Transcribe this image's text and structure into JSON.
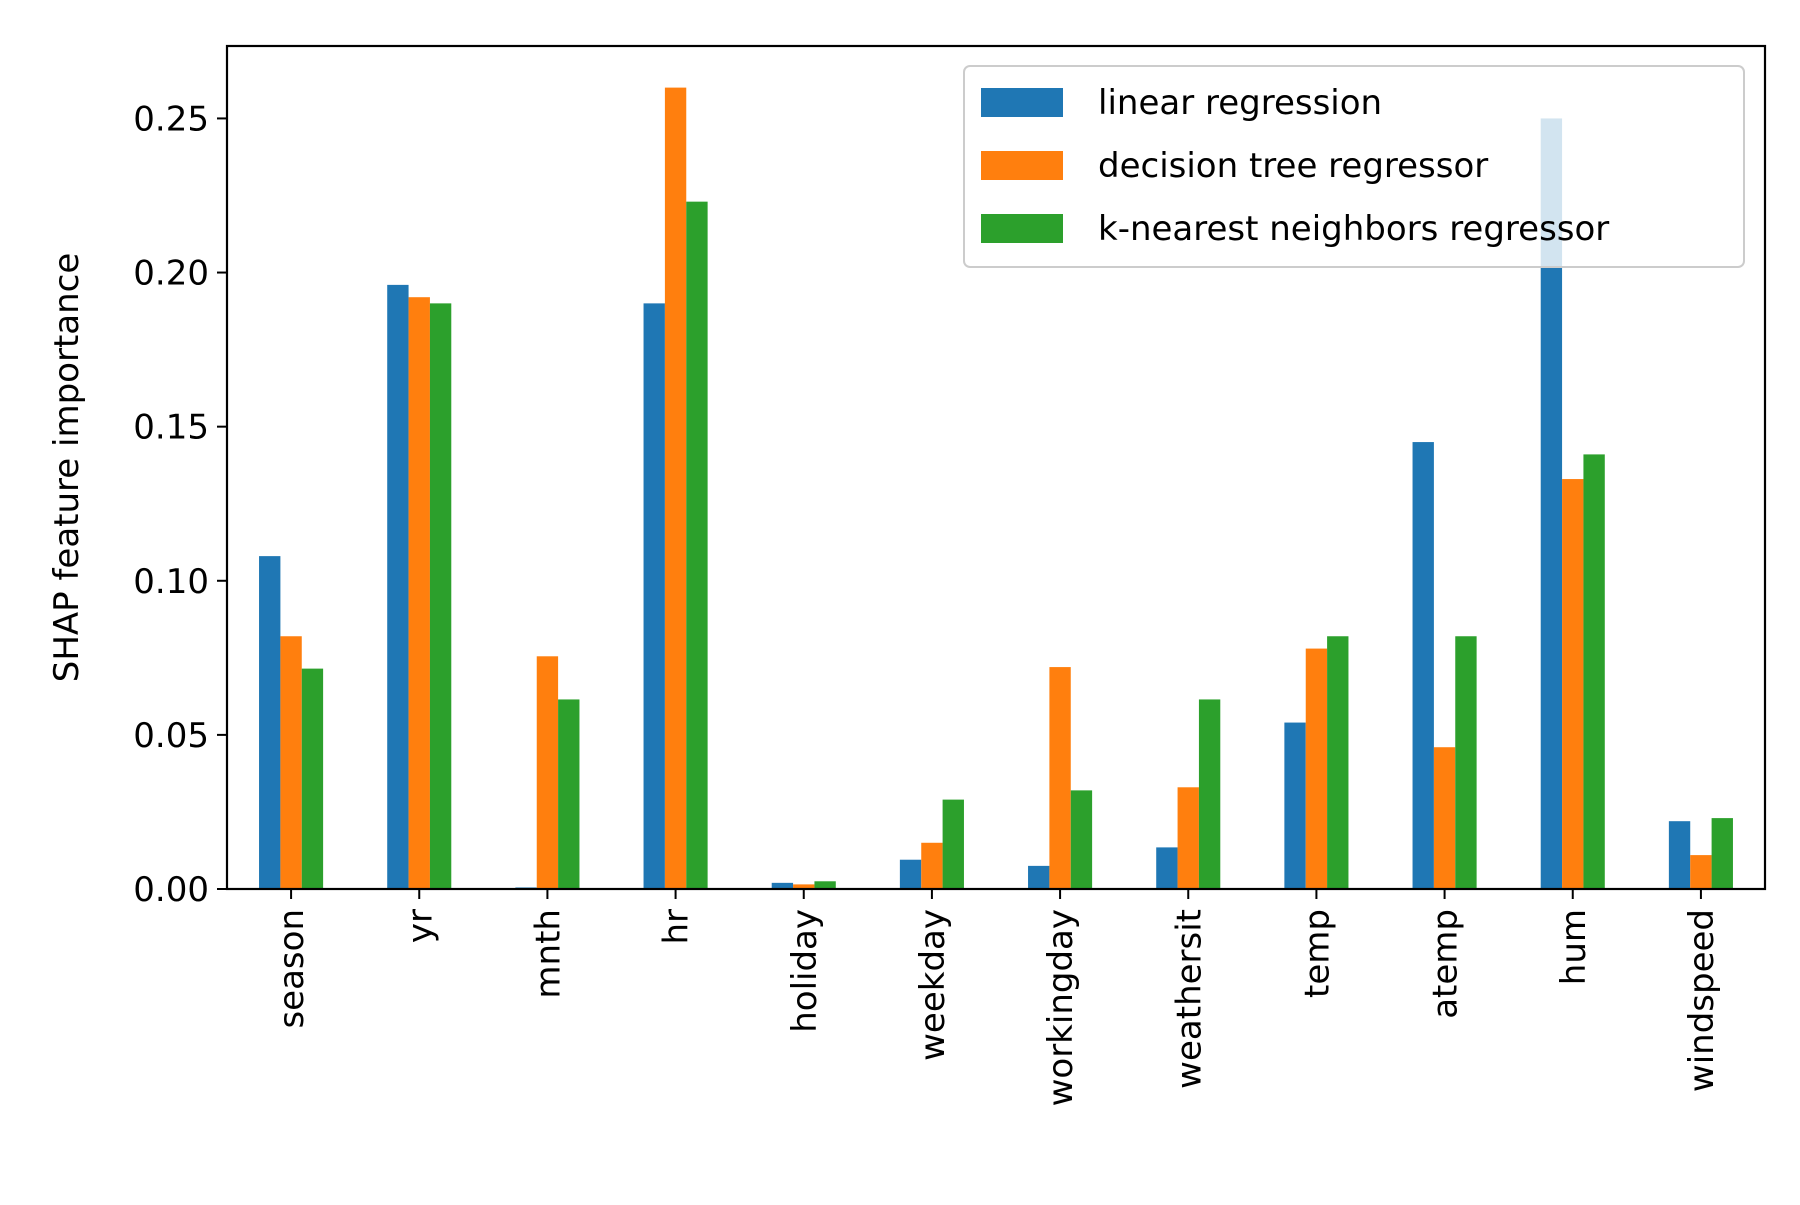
{
  "chart_data": {
    "type": "bar",
    "title": "",
    "xlabel": "",
    "ylabel": "SHAP feature importance",
    "ylim": [
      0,
      0.2735
    ],
    "yticks": [
      0.0,
      0.05,
      0.1,
      0.15,
      0.2,
      0.25
    ],
    "ytick_labels": [
      "0.00",
      "0.05",
      "0.10",
      "0.15",
      "0.20",
      "0.25"
    ],
    "categories": [
      "season",
      "yr",
      "mnth",
      "hr",
      "holiday",
      "weekday",
      "workingday",
      "weathersit",
      "temp",
      "atemp",
      "hum",
      "windspeed"
    ],
    "series": [
      {
        "name": "linear regression",
        "color": "#1f77b4",
        "values": [
          0.108,
          0.196,
          0.0005,
          0.19,
          0.002,
          0.0095,
          0.0075,
          0.0135,
          0.054,
          0.145,
          0.25,
          0.022
        ]
      },
      {
        "name": "decision tree regressor",
        "color": "#ff7f0e",
        "values": [
          0.082,
          0.192,
          0.0755,
          0.26,
          0.0015,
          0.015,
          0.072,
          0.033,
          0.078,
          0.046,
          0.133,
          0.011
        ]
      },
      {
        "name": "k-nearest neighbors regressor",
        "color": "#2ca02c",
        "values": [
          0.0715,
          0.19,
          0.0615,
          0.223,
          0.0025,
          0.029,
          0.032,
          0.0615,
          0.082,
          0.082,
          0.141,
          0.023
        ]
      }
    ],
    "grid": false,
    "legend_position": "top-right"
  }
}
